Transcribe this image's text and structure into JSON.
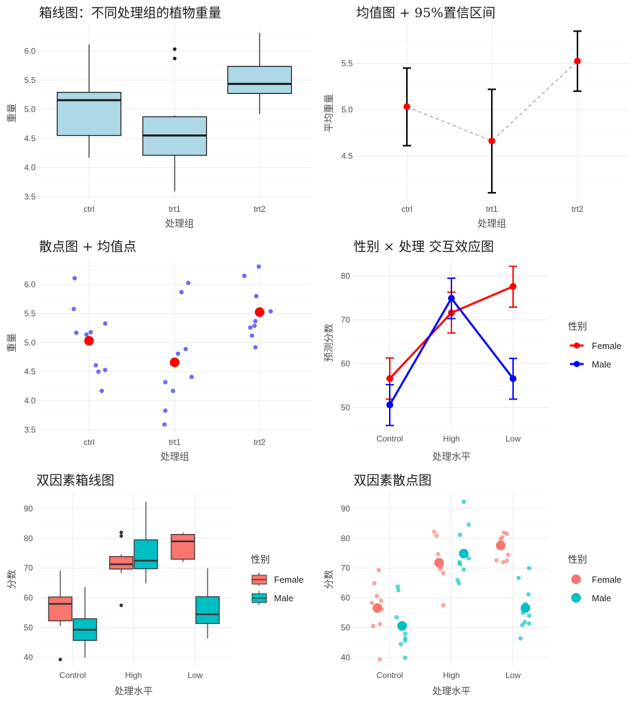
{
  "chart_data": [
    {
      "type": "box",
      "title": "箱线图：不同处理组的植物重量",
      "xlabel": "处理组",
      "ylabel": "重量",
      "categories": [
        "ctrl",
        "trt1",
        "trt2"
      ],
      "yticks": [
        "3.5",
        "4.0",
        "4.5",
        "5.0",
        "5.5",
        "6.0"
      ],
      "ylim": [
        3.44,
        6.45
      ],
      "grid": true,
      "fill_color": "#add8e6",
      "boxes": [
        {
          "category": "ctrl",
          "lower_whisker": 4.17,
          "q1": 4.55,
          "median": 5.155,
          "q3": 5.29,
          "upper_whisker": 6.11,
          "outliers": []
        },
        {
          "category": "trt1",
          "lower_whisker": 3.59,
          "q1": 4.21,
          "median": 4.55,
          "q3": 4.87,
          "upper_whisker": 4.89,
          "outliers": [
            5.87,
            6.03
          ]
        },
        {
          "category": "trt2",
          "lower_whisker": 4.92,
          "q1": 5.27,
          "median": 5.435,
          "q3": 5.735,
          "upper_whisker": 6.31,
          "outliers": []
        }
      ]
    },
    {
      "type": "errorbar",
      "title": "均值图 + 95%置信区间",
      "xlabel": "处理组",
      "ylabel": "平均重量",
      "categories": [
        "ctrl",
        "trt1",
        "trt2"
      ],
      "yticks": [
        "4.5",
        "5.0",
        "5.5"
      ],
      "ylim": [
        4.02,
        5.92
      ],
      "grid": true,
      "point_color": "#ff0000",
      "line_color": "#a0a0a0",
      "means": [
        5.032,
        4.661,
        5.526
      ],
      "ci_lower": [
        4.61,
        4.1,
        5.2
      ],
      "ci_upper": [
        5.45,
        5.22,
        5.85
      ]
    },
    {
      "type": "scatter",
      "title": "散点图 + 均值点",
      "xlabel": "处理组",
      "ylabel": "重量",
      "categories": [
        "ctrl",
        "trt1",
        "trt2"
      ],
      "yticks": [
        "3.5",
        "4.0",
        "4.5",
        "5.0",
        "5.5",
        "6.0"
      ],
      "ylim": [
        3.44,
        6.45
      ],
      "grid": true,
      "point_color": "#5b5bf5",
      "mean_color": "#ff0000",
      "series": [
        {
          "category": "ctrl",
          "values": [
            4.17,
            5.58,
            5.18,
            6.11,
            4.5,
            4.61,
            5.17,
            4.53,
            5.33,
            5.14
          ],
          "jitter": [
            0.15,
            -0.18,
            0.02,
            -0.17,
            0.11,
            0.08,
            -0.15,
            0.19,
            0.19,
            -0.03
          ],
          "mean": 5.032
        },
        {
          "category": "trt1",
          "values": [
            4.81,
            4.17,
            4.41,
            3.59,
            5.87,
            3.83,
            6.03,
            4.89,
            4.32,
            4.69
          ],
          "jitter": [
            0.04,
            -0.02,
            0.2,
            -0.12,
            0.08,
            -0.11,
            0.16,
            0.13,
            -0.11,
            0.0
          ],
          "mean": 4.661
        },
        {
          "category": "trt2",
          "values": [
            6.31,
            5.12,
            5.54,
            5.5,
            5.37,
            5.29,
            4.92,
            6.15,
            5.8,
            5.26
          ],
          "jitter": [
            -0.01,
            -0.09,
            0.13,
            0.0,
            -0.05,
            -0.06,
            -0.05,
            -0.18,
            -0.04,
            -0.11
          ],
          "mean": 5.526
        }
      ]
    },
    {
      "type": "line",
      "title": "性别 × 处理 交互效应图",
      "xlabel": "处理水平",
      "ylabel": "预测分数",
      "categories": [
        "Control",
        "High",
        "Low"
      ],
      "yticks": [
        "50",
        "60",
        "70",
        "80"
      ],
      "ylim": [
        44.9,
        84.0
      ],
      "grid": true,
      "legend_title": "性别",
      "legend_position": "right",
      "series": [
        {
          "name": "Female",
          "color": "#ff0000",
          "values": [
            56.6,
            71.6,
            77.6
          ],
          "ci_lower": [
            51.9,
            67.0,
            72.9
          ],
          "ci_upper": [
            61.3,
            76.3,
            82.2
          ]
        },
        {
          "name": "Male",
          "color": "#0000ff",
          "values": [
            50.6,
            74.9,
            56.6
          ],
          "ci_lower": [
            45.9,
            70.3,
            51.9
          ],
          "ci_upper": [
            55.2,
            79.5,
            61.2
          ]
        }
      ]
    },
    {
      "type": "box",
      "title": "双因素箱线图",
      "xlabel": "处理水平",
      "ylabel": "分数",
      "categories": [
        "Control",
        "High",
        "Low"
      ],
      "yticks": [
        "40",
        "50",
        "60",
        "70",
        "80",
        "90"
      ],
      "ylim": [
        37.0,
        95.5
      ],
      "grid": true,
      "legend_title": "性别",
      "legend_position": "right",
      "series": [
        {
          "name": "Female",
          "color": "#f8766d",
          "boxes": [
            {
              "lower_whisker": 50.6,
              "q1": 52.3,
              "median": 58.0,
              "q3": 60.3,
              "upper_whisker": 69.3,
              "outliers": [
                39.3
              ]
            },
            {
              "lower_whisker": 68.3,
              "q1": 69.7,
              "median": 71.3,
              "q3": 73.9,
              "upper_whisker": 74.6,
              "outliers": [
                57.5,
                80.8,
                82.0
              ]
            },
            {
              "lower_whisker": 72.0,
              "q1": 73.0,
              "median": 79.0,
              "q3": 81.3,
              "upper_whisker": 82.0,
              "outliers": []
            }
          ]
        },
        {
          "name": "Male",
          "color": "#00bfc4",
          "boxes": [
            {
              "lower_whisker": 39.9,
              "q1": 45.7,
              "median": 49.3,
              "q3": 53.0,
              "upper_whisker": 63.6,
              "outliers": []
            },
            {
              "lower_whisker": 64.9,
              "q1": 69.8,
              "median": 72.5,
              "q3": 79.5,
              "upper_whisker": 92.3,
              "outliers": []
            },
            {
              "lower_whisker": 46.4,
              "q1": 51.4,
              "median": 54.5,
              "q3": 60.4,
              "upper_whisker": 70.0,
              "outliers": []
            }
          ]
        }
      ]
    },
    {
      "type": "scatter",
      "title": "双因素散点图",
      "xlabel": "处理水平",
      "ylabel": "分数",
      "categories": [
        "Control",
        "High",
        "Low"
      ],
      "yticks": [
        "40",
        "50",
        "60",
        "70",
        "80",
        "90"
      ],
      "ylim": [
        37.0,
        95.5
      ],
      "grid": true,
      "legend_title": "性别",
      "legend_position": "right",
      "series": [
        {
          "name": "Female",
          "color": "#f8766d",
          "groups": [
            {
              "values": [
                69.3,
                64.9,
                60.6,
                59.0,
                58.3,
                56.5,
                56.2,
                51.2,
                50.6,
                39.3
              ],
              "jitter": [
                0.02,
                -0.05,
                -0.01,
                0.06,
                -0.09,
                0.04,
                0.07,
                0.04,
                -0.07,
                0.04
              ],
              "mean": 56.6
            },
            {
              "values": [
                82.2,
                80.9,
                74.7,
                70.5,
                69.6,
                68.3,
                57.5
              ],
              "jitter": [
                -0.08,
                -0.04,
                -0.02,
                0.04,
                0.02,
                0.07,
                0.07
              ],
              "mean": 71.8
            },
            {
              "values": [
                82.0,
                81.5,
                80.4,
                79.5,
                74.5,
                72.6,
                72.5,
                72.0
              ],
              "jitter": [
                0.05,
                0.1,
                0.02,
                0.0,
                0.12,
                -0.07,
                0.1,
                0.04
              ],
              "mean": 77.6
            }
          ]
        },
        {
          "name": "Male",
          "color": "#00bfc4",
          "groups": [
            {
              "values": [
                63.8,
                62.6,
                53.5,
                48.0,
                46.5,
                45.6,
                44.5,
                39.9
              ],
              "jitter": [
                -0.07,
                -0.06,
                -0.09,
                0.05,
                0.05,
                0.05,
                -0.02,
                0.05
              ],
              "mean": 50.6
            },
            {
              "values": [
                92.3,
                84.6,
                81.2,
                73.3,
                72.0,
                71.3,
                69.5,
                66.0,
                64.9
              ],
              "jitter": [
                0.0,
                0.08,
                -0.06,
                0.08,
                -0.07,
                -0.06,
                0.0,
                -0.1,
                -0.08
              ],
              "mean": 74.9
            },
            {
              "values": [
                70.0,
                66.7,
                61.2,
                58.0,
                55.0,
                54.0,
                51.9,
                51.4,
                50.9,
                46.4
              ],
              "jitter": [
                0.06,
                -0.11,
                0.05,
                0.0,
                -0.04,
                0.06,
                -0.01,
                0.06,
                -0.05,
                -0.08
              ],
              "mean": 56.6
            }
          ]
        }
      ]
    }
  ]
}
